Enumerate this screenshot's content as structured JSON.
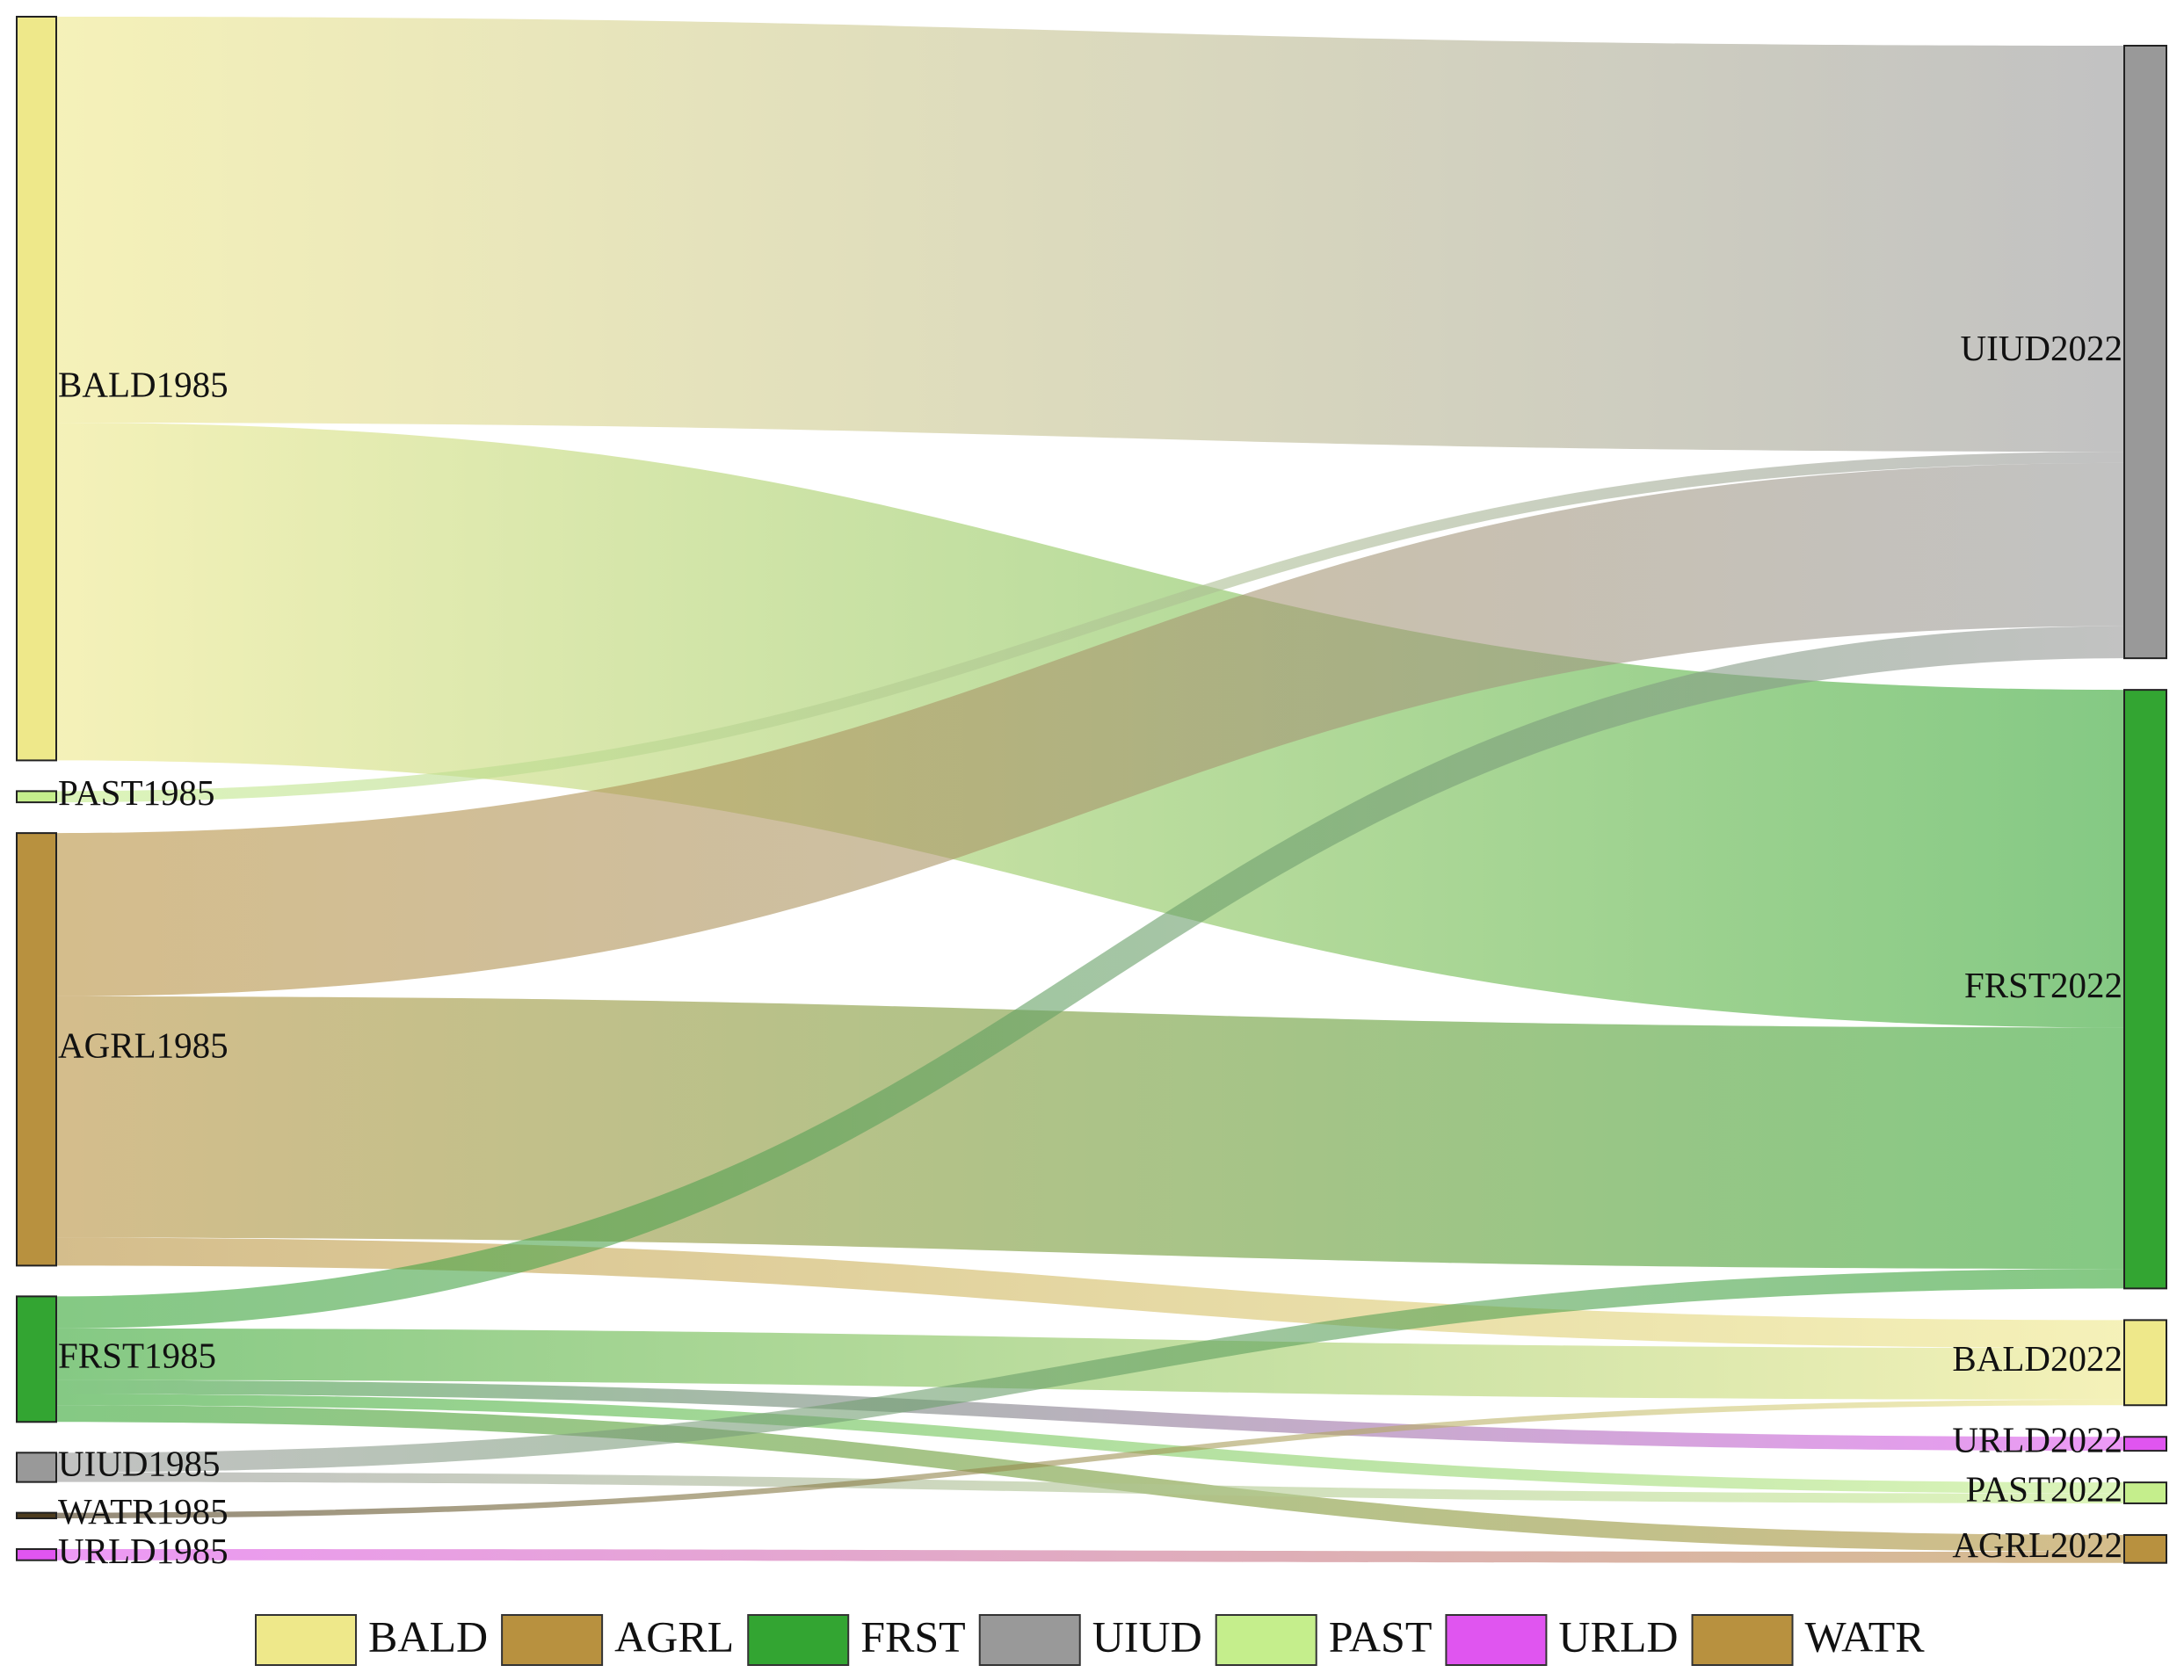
{
  "chart_data": {
    "type": "sankey",
    "left_nodes": [
      {
        "name": "BALD1985",
        "color": "#eee88a"
      },
      {
        "name": "PAST1985",
        "color": "#c5ee8c"
      },
      {
        "name": "AGRL1985",
        "color": "#b8913f"
      },
      {
        "name": "FRST1985",
        "color": "#33a532"
      },
      {
        "name": "UIUD1985",
        "color": "#999999"
      },
      {
        "name": "WATR1985",
        "color": "#4d3c1e"
      },
      {
        "name": "URLD1985",
        "color": "#e055f0"
      }
    ],
    "right_nodes": [
      {
        "name": "UIUD2022",
        "color": "#999999"
      },
      {
        "name": "FRST2022",
        "color": "#33a532"
      },
      {
        "name": "BALD2022",
        "color": "#eee88a"
      },
      {
        "name": "URLD2022",
        "color": "#e055f0"
      },
      {
        "name": "PAST2022",
        "color": "#c5ee8c"
      },
      {
        "name": "AGRL2022",
        "color": "#b8913f"
      }
    ],
    "links": [
      {
        "source": "BALD1985",
        "target": "UIUD2022",
        "value": 291
      },
      {
        "source": "BALD1985",
        "target": "FRST2022",
        "value": 242
      },
      {
        "source": "PAST1985",
        "target": "UIUD2022",
        "value": 8
      },
      {
        "source": "AGRL1985",
        "target": "UIUD2022",
        "value": 117
      },
      {
        "source": "AGRL1985",
        "target": "FRST2022",
        "value": 173
      },
      {
        "source": "AGRL1985",
        "target": "BALD2022",
        "value": 20
      },
      {
        "source": "FRST1985",
        "target": "UIUD2022",
        "value": 23
      },
      {
        "source": "FRST1985",
        "target": "BALD2022",
        "value": 37
      },
      {
        "source": "FRST1985",
        "target": "URLD2022",
        "value": 10
      },
      {
        "source": "FRST1985",
        "target": "PAST2022",
        "value": 8
      },
      {
        "source": "FRST1985",
        "target": "AGRL2022",
        "value": 12
      },
      {
        "source": "UIUD1985",
        "target": "FRST2022",
        "value": 14
      },
      {
        "source": "UIUD1985",
        "target": "PAST2022",
        "value": 7
      },
      {
        "source": "WATR1985",
        "target": "BALD2022",
        "value": 4
      },
      {
        "source": "URLD1985",
        "target": "AGRL2022",
        "value": 8
      }
    ],
    "legend": [
      {
        "name": "BALD",
        "color": "#eee88a"
      },
      {
        "name": "AGRL",
        "color": "#b8913f"
      },
      {
        "name": "FRST",
        "color": "#33a532"
      },
      {
        "name": "UIUD",
        "color": "#999999"
      },
      {
        "name": "PAST",
        "color": "#c5ee8c"
      },
      {
        "name": "URLD",
        "color": "#e055f0"
      },
      {
        "name": "WATR",
        "color": "#b8913f"
      }
    ]
  }
}
